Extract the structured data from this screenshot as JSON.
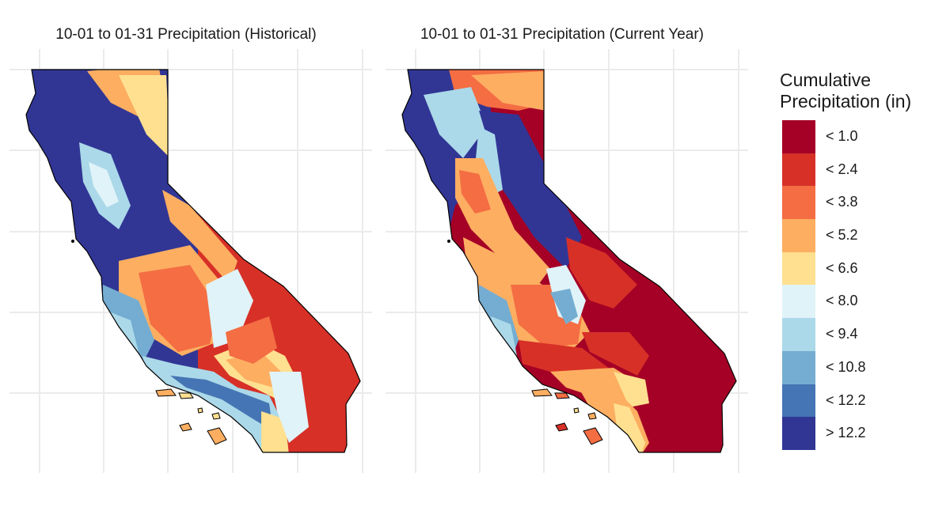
{
  "panels": [
    {
      "title": "10-01 to 01-31 Precipitation (Historical)",
      "key": "historical"
    },
    {
      "title": "10-01 to 01-31 Precipitation (Current Year)",
      "key": "current"
    }
  ],
  "legend": {
    "title_line1": "Cumulative",
    "title_line2": "Precipitation (in)",
    "items": [
      {
        "label": "< 1.0",
        "color": "#a50026"
      },
      {
        "label": "< 2.4",
        "color": "#d73027"
      },
      {
        "label": "< 3.8",
        "color": "#f46d43"
      },
      {
        "label": "< 5.2",
        "color": "#fdae61"
      },
      {
        "label": "< 6.6",
        "color": "#fee090"
      },
      {
        "label": "< 8.0",
        "color": "#e0f3f8"
      },
      {
        "label": "< 9.4",
        "color": "#abd9e9"
      },
      {
        "label": "< 10.8",
        "color": "#74add1"
      },
      {
        "label": "< 12.2",
        "color": "#4575b4"
      },
      {
        "label": "> 12.2",
        "color": "#313695"
      }
    ]
  },
  "colors": {
    "gridline": "#ebebeb",
    "outline": "#000000"
  }
}
